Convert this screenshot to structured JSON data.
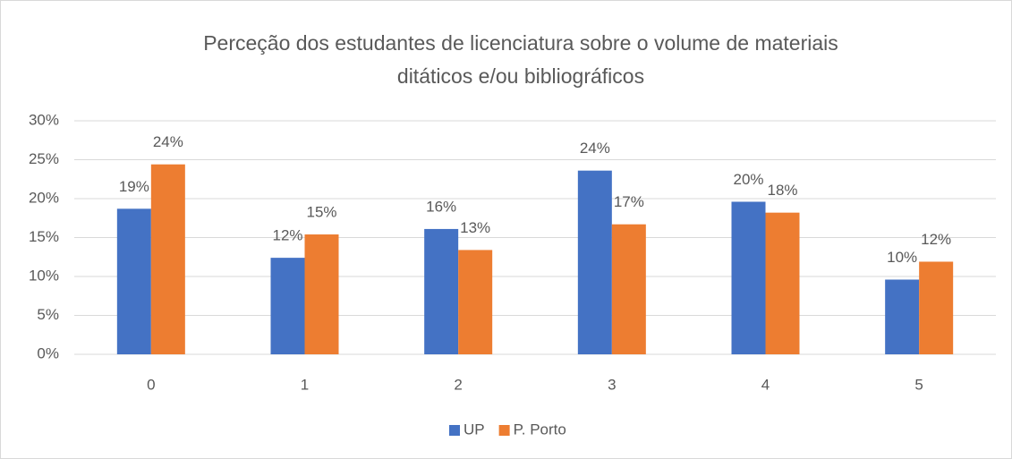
{
  "chart_data": {
    "type": "bar",
    "title": [
      "Perceção dos estudantes de licenciatura sobre o volume de materiais",
      "ditáticos e/ou bibliográficos"
    ],
    "categories": [
      "0",
      "1",
      "2",
      "3",
      "4",
      "5"
    ],
    "series": [
      {
        "name": "UP",
        "color": "#4472c4",
        "values": [
          18.7,
          12.4,
          16.1,
          23.6,
          19.6,
          9.6
        ],
        "value_labels": [
          "19%",
          "12%",
          "16%",
          "24%",
          "20%",
          "10%"
        ]
      },
      {
        "name": "P. Porto",
        "color": "#ed7d31",
        "values": [
          24.4,
          15.4,
          13.4,
          16.7,
          18.2,
          11.9
        ],
        "value_labels": [
          "24%",
          "15%",
          "13%",
          "17%",
          "18%",
          "12%"
        ]
      }
    ],
    "ylim": [
      0,
      30
    ],
    "yticks": [
      {
        "value": 0,
        "label": "0%"
      },
      {
        "value": 5,
        "label": "5%"
      },
      {
        "value": 10,
        "label": "10%"
      },
      {
        "value": 15,
        "label": "15%"
      },
      {
        "value": 20,
        "label": "20%"
      },
      {
        "value": 25,
        "label": "25%"
      },
      {
        "value": 30,
        "label": "30%"
      }
    ],
    "grid": true,
    "legend": "bottom"
  }
}
